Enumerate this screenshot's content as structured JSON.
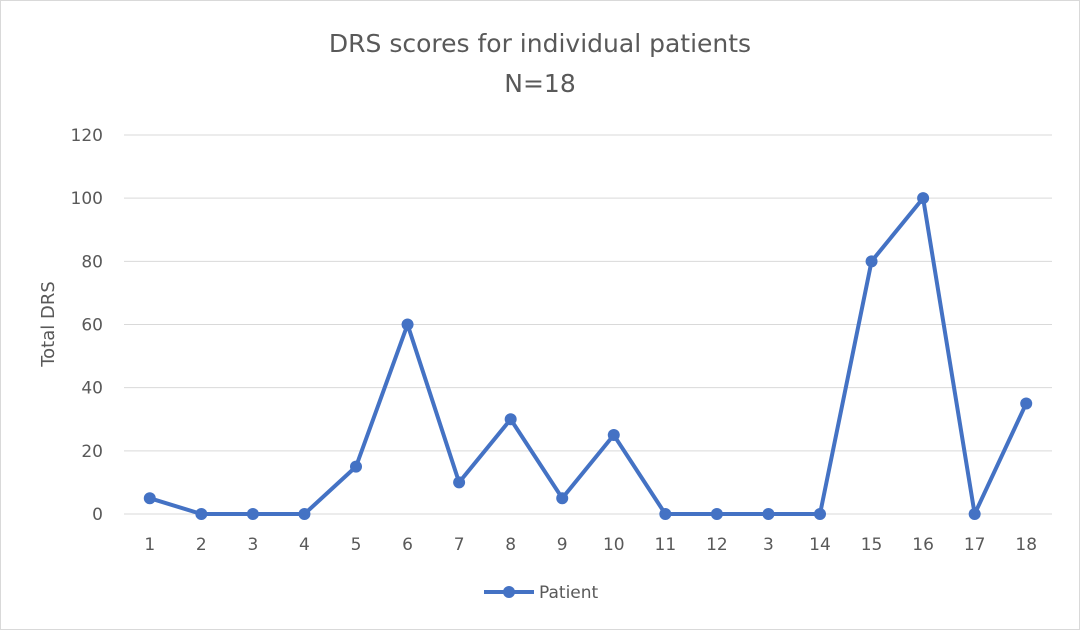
{
  "chart_data": {
    "type": "line",
    "title": "DRS scores for individual patients",
    "subtitle": "N=18",
    "xlabel": "",
    "ylabel": "Total DRS",
    "categories": [
      "1",
      "2",
      "3",
      "4",
      "5",
      "6",
      "7",
      "8",
      "9",
      "10",
      "11",
      "12",
      "3",
      "14",
      "15",
      "16",
      "17",
      "18"
    ],
    "series": [
      {
        "name": "Patient",
        "color": "#4472c4",
        "values": [
          5,
          0,
          0,
          0,
          15,
          60,
          10,
          30,
          5,
          25,
          0,
          0,
          0,
          0,
          80,
          100,
          0,
          35
        ]
      }
    ],
    "ylim": [
      0,
      120
    ],
    "yticks": [
      "0",
      "20",
      "40",
      "60",
      "80",
      "100",
      "120"
    ],
    "grid": true,
    "legend_position": "bottom",
    "colors": {
      "gridline": "#d9d9d9",
      "text": "#595959"
    }
  }
}
